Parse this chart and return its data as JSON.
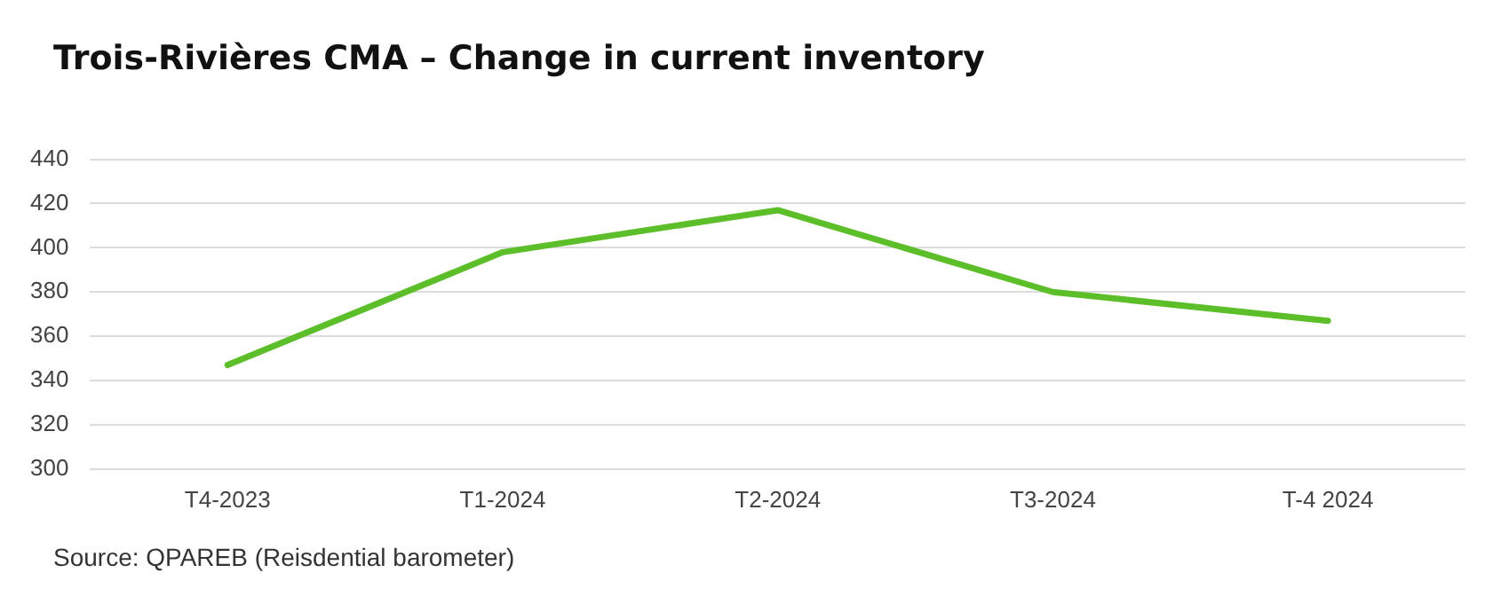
{
  "chart_data": {
    "type": "line",
    "title": "Trois-Rivières CMA – Change in current inventory",
    "categories": [
      "T4-2023",
      "T1-2024",
      "T2-2024",
      "T3-2024",
      "T-4 2024"
    ],
    "series": [
      {
        "color": "#5cbf2a",
        "values": [
          347,
          398,
          417,
          380,
          367
        ]
      }
    ],
    "ylim": [
      300,
      440
    ],
    "yticks": [
      300,
      320,
      340,
      360,
      380,
      400,
      420,
      440
    ],
    "grid": "y",
    "legend": false,
    "marker": "none",
    "annotations": [
      "Source: QPAREB (Reisdential barometer)"
    ]
  }
}
